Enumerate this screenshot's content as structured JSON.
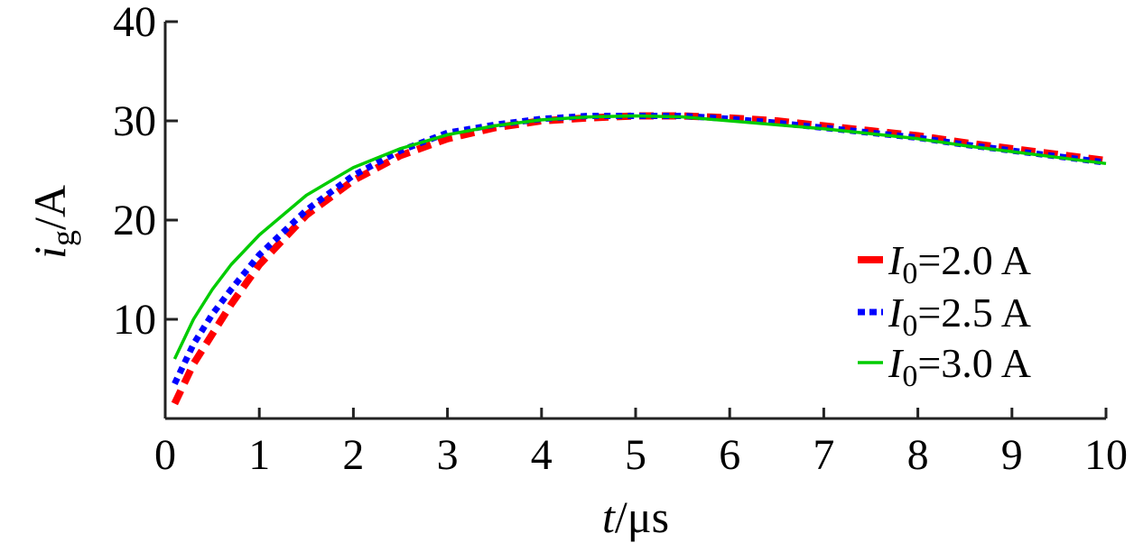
{
  "chart_data": {
    "type": "line",
    "xlabel": {
      "var": "t",
      "unit": "μs"
    },
    "ylabel": {
      "var": "i",
      "sub": "g",
      "unit": "A"
    },
    "xlim": [
      0,
      10
    ],
    "ylim": [
      0,
      40
    ],
    "xticks": [
      "0",
      "1",
      "2",
      "3",
      "4",
      "5",
      "6",
      "7",
      "8",
      "9",
      "10"
    ],
    "yticks": [
      "10",
      "20",
      "30",
      "40"
    ],
    "legend_position": "right",
    "series": [
      {
        "name": "I0=2.0 A",
        "label_var": "I",
        "label_sub": "0",
        "label_rest": "=2.0 A",
        "color": "#ff0000",
        "style": "dashed-thick",
        "x": [
          0.1,
          0.3,
          0.5,
          0.7,
          1.0,
          1.5,
          2.0,
          2.5,
          3.0,
          3.5,
          4.0,
          4.5,
          5.0,
          5.5,
          6.0,
          6.5,
          7.0,
          7.5,
          8.0,
          8.5,
          9.0,
          9.5,
          10.0
        ],
        "y": [
          1.5,
          5.5,
          8.5,
          11.5,
          15.5,
          20.5,
          24.0,
          26.5,
          28.2,
          29.3,
          30.0,
          30.3,
          30.5,
          30.5,
          30.3,
          30.0,
          29.5,
          29.0,
          28.5,
          27.8,
          27.2,
          26.6,
          26.0
        ]
      },
      {
        "name": "I0=2.5 A",
        "label_var": "I",
        "label_sub": "0",
        "label_rest": "=2.5 A",
        "color": "#0000ff",
        "style": "dotted",
        "x": [
          0.1,
          0.3,
          0.5,
          0.7,
          1.0,
          1.5,
          2.0,
          2.5,
          3.0,
          3.5,
          4.0,
          4.5,
          5.0,
          5.5,
          6.0,
          6.5,
          7.0,
          7.5,
          8.0,
          8.5,
          9.0,
          9.5,
          10.0
        ],
        "y": [
          3.5,
          7.5,
          10.5,
          13.0,
          16.5,
          21.0,
          24.5,
          27.0,
          28.8,
          29.6,
          30.2,
          30.5,
          30.5,
          30.5,
          30.2,
          29.8,
          29.3,
          28.8,
          28.3,
          27.6,
          27.0,
          26.4,
          25.8
        ]
      },
      {
        "name": "I0=3.0 A",
        "label_var": "I",
        "label_sub": "0",
        "label_rest": "=3.0 A",
        "color": "#00cc00",
        "style": "solid",
        "x": [
          0.1,
          0.3,
          0.5,
          0.7,
          1.0,
          1.5,
          2.0,
          2.5,
          3.0,
          3.5,
          4.0,
          4.5,
          5.0,
          5.5,
          6.0,
          6.5,
          7.0,
          7.5,
          8.0,
          8.5,
          9.0,
          9.5,
          10.0
        ],
        "y": [
          6.0,
          10.0,
          13.0,
          15.5,
          18.5,
          22.5,
          25.3,
          27.2,
          28.6,
          29.5,
          30.1,
          30.4,
          30.5,
          30.4,
          30.0,
          29.6,
          29.2,
          28.7,
          28.2,
          27.5,
          26.9,
          26.3,
          25.7
        ]
      }
    ]
  }
}
